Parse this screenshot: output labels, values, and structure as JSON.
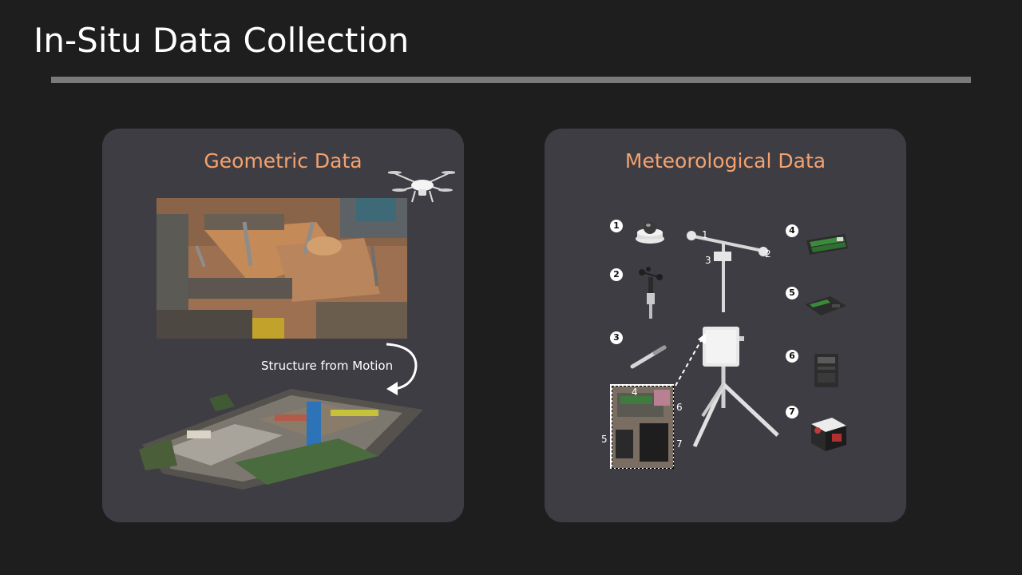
{
  "slide": {
    "title": "In-Situ Data Collection"
  },
  "geometric": {
    "title": "Geometric Data",
    "process_label": "Structure from Motion"
  },
  "meteorological": {
    "title": "Meteorological Data",
    "sensor_markers": [
      "1",
      "2",
      "3",
      "4",
      "5",
      "6",
      "7"
    ],
    "station_callouts": [
      "1",
      "2",
      "3"
    ],
    "logger_callouts": [
      "4",
      "5",
      "6",
      "7"
    ]
  },
  "colors": {
    "background": "#1e1e1f",
    "panel": "#3f3d44",
    "accent": "#f3a26e",
    "rule": "#7a7a7a"
  }
}
